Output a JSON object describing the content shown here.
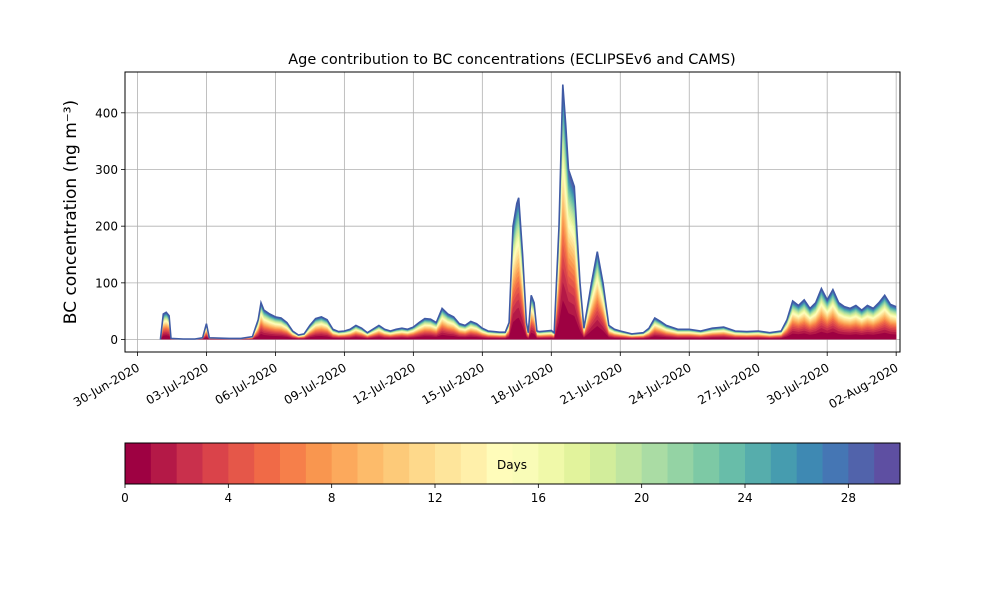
{
  "chart_data": {
    "type": "area",
    "title": "Age contribution to BC concentrations (ECLIPSEv6 and CAMS)",
    "ylabel": "BC concentration (ng m⁻³)",
    "xlabel": "",
    "xlim": [
      "2020-06-29T11:00",
      "2020-08-02T04:00"
    ],
    "ylim": [
      -22,
      472
    ],
    "yticks": [
      0,
      100,
      200,
      300,
      400
    ],
    "xtick_dates": [
      "2020-06-30",
      "2020-07-03",
      "2020-07-06",
      "2020-07-09",
      "2020-07-12",
      "2020-07-15",
      "2020-07-18",
      "2020-07-21",
      "2020-07-24",
      "2020-07-27",
      "2020-07-30",
      "2020-08-02"
    ],
    "xtick_labels": [
      "30-Jun-2020",
      "03-Jul-2020",
      "06-Jul-2020",
      "09-Jul-2020",
      "12-Jul-2020",
      "15-Jul-2020",
      "18-Jul-2020",
      "21-Jul-2020",
      "24-Jul-2020",
      "27-Jul-2020",
      "30-Jul-2020",
      "02-Aug-2020"
    ],
    "grid": true,
    "total": [
      [
        "2020-07-01T00:00",
        0
      ],
      [
        "2020-07-01T03:00",
        45
      ],
      [
        "2020-07-01T06:00",
        48
      ],
      [
        "2020-07-01T09:00",
        42
      ],
      [
        "2020-07-01T11:00",
        2
      ],
      [
        "2020-07-02T00:00",
        1
      ],
      [
        "2020-07-02T12:00",
        1
      ],
      [
        "2020-07-02T20:00",
        3
      ],
      [
        "2020-07-03T00:00",
        28
      ],
      [
        "2020-07-03T03:00",
        3
      ],
      [
        "2020-07-04T00:00",
        2
      ],
      [
        "2020-07-04T12:00",
        2
      ],
      [
        "2020-07-05T00:00",
        5
      ],
      [
        "2020-07-05T06:00",
        35
      ],
      [
        "2020-07-05T09:00",
        65
      ],
      [
        "2020-07-05T12:00",
        52
      ],
      [
        "2020-07-05T18:00",
        45
      ],
      [
        "2020-07-06T00:00",
        40
      ],
      [
        "2020-07-06T06:00",
        38
      ],
      [
        "2020-07-06T12:00",
        30
      ],
      [
        "2020-07-06T18:00",
        15
      ],
      [
        "2020-07-07T00:00",
        8
      ],
      [
        "2020-07-07T06:00",
        10
      ],
      [
        "2020-07-07T12:00",
        25
      ],
      [
        "2020-07-07T18:00",
        37
      ],
      [
        "2020-07-08T00:00",
        40
      ],
      [
        "2020-07-08T06:00",
        35
      ],
      [
        "2020-07-08T12:00",
        18
      ],
      [
        "2020-07-08T18:00",
        14
      ],
      [
        "2020-07-09T00:00",
        15
      ],
      [
        "2020-07-09T06:00",
        18
      ],
      [
        "2020-07-09T12:00",
        25
      ],
      [
        "2020-07-09T18:00",
        20
      ],
      [
        "2020-07-10T00:00",
        12
      ],
      [
        "2020-07-10T12:00",
        25
      ],
      [
        "2020-07-10T18:00",
        18
      ],
      [
        "2020-07-11T00:00",
        15
      ],
      [
        "2020-07-11T06:00",
        18
      ],
      [
        "2020-07-11T12:00",
        20
      ],
      [
        "2020-07-11T18:00",
        18
      ],
      [
        "2020-07-12T00:00",
        22
      ],
      [
        "2020-07-12T06:00",
        30
      ],
      [
        "2020-07-12T12:00",
        37
      ],
      [
        "2020-07-12T18:00",
        36
      ],
      [
        "2020-07-13T00:00",
        30
      ],
      [
        "2020-07-13T06:00",
        55
      ],
      [
        "2020-07-13T12:00",
        45
      ],
      [
        "2020-07-13T18:00",
        40
      ],
      [
        "2020-07-14T00:00",
        28
      ],
      [
        "2020-07-14T06:00",
        25
      ],
      [
        "2020-07-14T12:00",
        32
      ],
      [
        "2020-07-14T18:00",
        28
      ],
      [
        "2020-07-15T00:00",
        20
      ],
      [
        "2020-07-15T06:00",
        15
      ],
      [
        "2020-07-15T12:00",
        14
      ],
      [
        "2020-07-15T18:00",
        13
      ],
      [
        "2020-07-16T00:00",
        13
      ],
      [
        "2020-07-16T04:00",
        30
      ],
      [
        "2020-07-16T08:00",
        200
      ],
      [
        "2020-07-16T12:00",
        240
      ],
      [
        "2020-07-16T14:00",
        250
      ],
      [
        "2020-07-16T18:00",
        150
      ],
      [
        "2020-07-16T22:00",
        30
      ],
      [
        "2020-07-17T00:00",
        12
      ],
      [
        "2020-07-17T03:00",
        78
      ],
      [
        "2020-07-17T06:00",
        65
      ],
      [
        "2020-07-17T09:00",
        15
      ],
      [
        "2020-07-17T12:00",
        14
      ],
      [
        "2020-07-17T18:00",
        15
      ],
      [
        "2020-07-18T00:00",
        16
      ],
      [
        "2020-07-18T03:00",
        12
      ],
      [
        "2020-07-18T08:00",
        200
      ],
      [
        "2020-07-18T12:00",
        450
      ],
      [
        "2020-07-18T15:00",
        380
      ],
      [
        "2020-07-18T18:00",
        300
      ],
      [
        "2020-07-19T00:00",
        270
      ],
      [
        "2020-07-19T06:00",
        100
      ],
      [
        "2020-07-19T10:00",
        20
      ],
      [
        "2020-07-19T18:00",
        100
      ],
      [
        "2020-07-20T00:00",
        155
      ],
      [
        "2020-07-20T06:00",
        100
      ],
      [
        "2020-07-20T12:00",
        25
      ],
      [
        "2020-07-20T18:00",
        18
      ],
      [
        "2020-07-21T00:00",
        15
      ],
      [
        "2020-07-21T12:00",
        10
      ],
      [
        "2020-07-22T00:00",
        12
      ],
      [
        "2020-07-22T06:00",
        20
      ],
      [
        "2020-07-22T12:00",
        38
      ],
      [
        "2020-07-22T18:00",
        32
      ],
      [
        "2020-07-23T00:00",
        25
      ],
      [
        "2020-07-23T12:00",
        18
      ],
      [
        "2020-07-24T00:00",
        18
      ],
      [
        "2020-07-24T12:00",
        15
      ],
      [
        "2020-07-25T00:00",
        20
      ],
      [
        "2020-07-25T12:00",
        22
      ],
      [
        "2020-07-26T00:00",
        15
      ],
      [
        "2020-07-26T12:00",
        14
      ],
      [
        "2020-07-27T00:00",
        15
      ],
      [
        "2020-07-27T12:00",
        12
      ],
      [
        "2020-07-28T00:00",
        15
      ],
      [
        "2020-07-28T06:00",
        35
      ],
      [
        "2020-07-28T12:00",
        68
      ],
      [
        "2020-07-28T18:00",
        60
      ],
      [
        "2020-07-29T00:00",
        70
      ],
      [
        "2020-07-29T06:00",
        55
      ],
      [
        "2020-07-29T12:00",
        65
      ],
      [
        "2020-07-29T18:00",
        90
      ],
      [
        "2020-07-30T00:00",
        70
      ],
      [
        "2020-07-30T06:00",
        88
      ],
      [
        "2020-07-30T12:00",
        65
      ],
      [
        "2020-07-30T18:00",
        58
      ],
      [
        "2020-07-31T00:00",
        55
      ],
      [
        "2020-07-31T06:00",
        60
      ],
      [
        "2020-07-31T12:00",
        52
      ],
      [
        "2020-07-31T18:00",
        60
      ],
      [
        "2020-08-01T00:00",
        55
      ],
      [
        "2020-08-01T06:00",
        65
      ],
      [
        "2020-08-01T12:00",
        78
      ],
      [
        "2020-08-01T18:00",
        62
      ],
      [
        "2020-08-02T00:00",
        58
      ]
    ],
    "colorbar": {
      "label": "Days",
      "min": 0,
      "max": 30,
      "ticks": [
        0,
        4,
        8,
        12,
        16,
        20,
        24,
        28
      ],
      "colors": [
        "#9e0142",
        "#b41947",
        "#c9304c",
        "#da434a",
        "#e55749",
        "#f06a47",
        "#f67f4a",
        "#f9964f",
        "#fca95c",
        "#fdbb6a",
        "#fdca79",
        "#fed98b",
        "#fee59b",
        "#fff0aa",
        "#fffcba",
        "#f9fcb7",
        "#f0f9a9",
        "#e2f39c",
        "#d2ed9b",
        "#bfe5a0",
        "#aadca4",
        "#94d3a4",
        "#7dc9a5",
        "#68bda9",
        "#56adac",
        "#469caf",
        "#3e89b3",
        "#4576b4",
        "#5163ab",
        "#5e4fa2"
      ]
    }
  }
}
